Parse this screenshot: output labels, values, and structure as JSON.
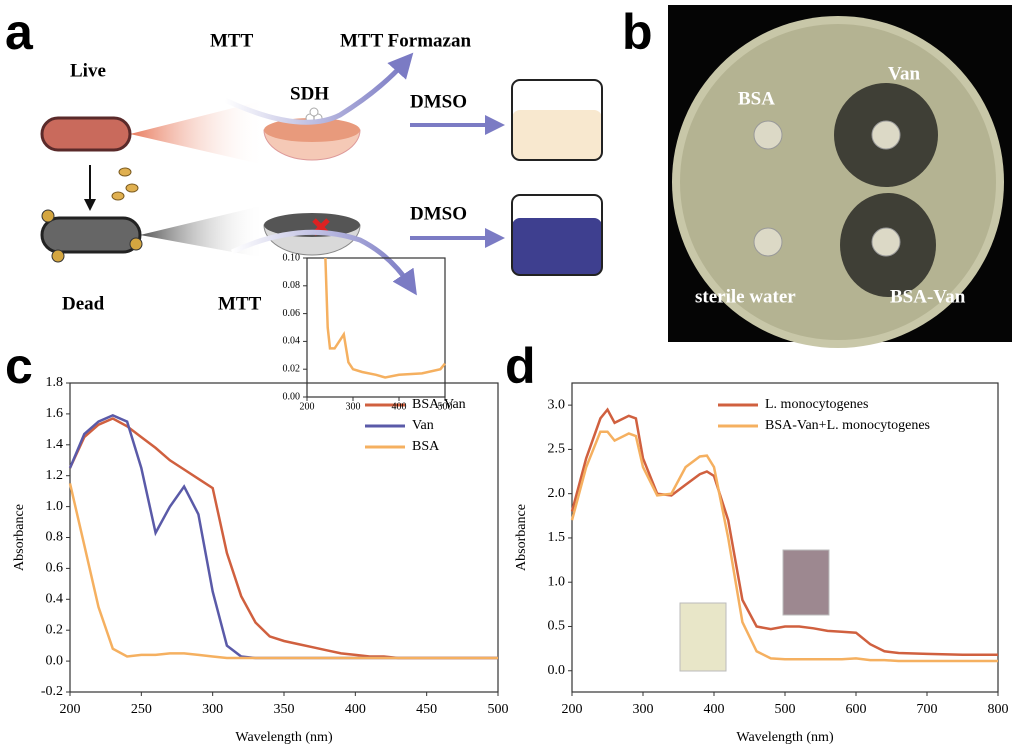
{
  "figure_a": {
    "panel": "a",
    "live": "Live",
    "dead": "Dead",
    "mtt_top": "MTT",
    "formazan": "MTT Formazan",
    "sdh": "SDH",
    "dmso_top": "DMSO",
    "dmso_bottom": "DMSO",
    "mtt_bottom": "MTT"
  },
  "figure_b": {
    "panel": "b",
    "labels": [
      "BSA",
      "Van",
      "sterile water",
      "BSA-Van"
    ]
  },
  "chart_data": [
    {
      "type": "line",
      "panel": "c",
      "x_label": "Wavelength (nm)",
      "y_label": "Absorbance",
      "legend": "upper right",
      "x": [
        200,
        210,
        220,
        230,
        240,
        250,
        260,
        270,
        280,
        290,
        300,
        310,
        320,
        330,
        340,
        350,
        360,
        370,
        380,
        390,
        400,
        410,
        420,
        430,
        440,
        450,
        460,
        470,
        480,
        490,
        500
      ],
      "series": [
        {
          "name": "BSA-Van",
          "color": "#d0603f",
          "values": [
            1.25,
            1.45,
            1.53,
            1.57,
            1.52,
            1.45,
            1.38,
            1.3,
            1.24,
            1.18,
            1.12,
            0.7,
            0.42,
            0.25,
            0.16,
            0.13,
            0.11,
            0.09,
            0.07,
            0.05,
            0.04,
            0.03,
            0.03,
            0.02,
            0.02,
            0.02,
            0.02,
            0.02,
            0.02,
            0.02,
            0.02
          ]
        },
        {
          "name": "Van",
          "color": "#5a5aa8",
          "values": [
            1.25,
            1.47,
            1.55,
            1.59,
            1.55,
            1.25,
            0.83,
            1.0,
            1.13,
            0.95,
            0.45,
            0.1,
            0.03,
            0.02,
            0.02,
            0.02,
            0.02,
            0.02,
            0.02,
            0.02,
            0.02,
            0.02,
            0.02,
            0.02,
            0.02,
            0.02,
            0.02,
            0.02,
            0.02,
            0.02,
            0.02
          ]
        },
        {
          "name": "BSA",
          "color": "#f5b060",
          "values": [
            1.15,
            0.75,
            0.35,
            0.08,
            0.03,
            0.04,
            0.04,
            0.05,
            0.05,
            0.04,
            0.03,
            0.02,
            0.02,
            0.02,
            0.02,
            0.02,
            0.02,
            0.02,
            0.02,
            0.02,
            0.02,
            0.02,
            0.02,
            0.02,
            0.02,
            0.02,
            0.02,
            0.02,
            0.02,
            0.02,
            0.02
          ]
        }
      ],
      "xlim": [
        200,
        500
      ],
      "xticks": [
        200,
        250,
        300,
        350,
        400,
        450,
        500
      ],
      "ylim": [
        -0.2,
        1.8
      ],
      "yticks": [
        -0.2,
        {
          "value": 0,
          "label": "0.0"
        },
        0.2,
        0.4,
        0.6,
        0.8,
        {
          "value": 1,
          "label": "1.0"
        },
        1.2,
        1.4,
        1.6,
        1.8
      ]
    },
    {
      "type": "line",
      "x": [
        240,
        245,
        250,
        260,
        270,
        280,
        290,
        300,
        320,
        350,
        370,
        400,
        450,
        490,
        500
      ],
      "series": [
        {
          "color": "#f5b060",
          "values": [
            0.1,
            0.05,
            0.035,
            0.035,
            0.04,
            0.045,
            0.025,
            0.02,
            0.018,
            0.016,
            0.014,
            0.016,
            0.017,
            0.02,
            0.024
          ]
        }
      ],
      "xlim": [
        200,
        500
      ],
      "xticks": [
        200,
        300,
        400,
        500
      ],
      "ylim": [
        0,
        0.1
      ],
      "yticks": [
        {
          "value": 0,
          "label": "0.00"
        },
        0.02,
        0.04,
        0.06,
        0.08,
        {
          "value": 0.1,
          "label": "0.10"
        }
      ]
    },
    {
      "type": "line",
      "panel": "d",
      "x_label": "Wavelength (nm)",
      "y_label": "Absorbance",
      "legend": "upper center",
      "x": [
        200,
        220,
        240,
        250,
        260,
        280,
        290,
        300,
        320,
        340,
        360,
        380,
        390,
        400,
        420,
        440,
        460,
        480,
        500,
        520,
        540,
        560,
        580,
        600,
        620,
        640,
        660,
        700,
        750,
        800
      ],
      "series": [
        {
          "name": "L. monocytogenes",
          "color": "#d0603f",
          "values": [
            1.8,
            2.4,
            2.85,
            2.95,
            2.8,
            2.88,
            2.85,
            2.4,
            2.0,
            1.98,
            2.1,
            2.22,
            2.25,
            2.2,
            1.7,
            0.8,
            0.5,
            0.47,
            0.5,
            0.5,
            0.48,
            0.45,
            0.44,
            0.43,
            0.3,
            0.22,
            0.2,
            0.19,
            0.18,
            0.18
          ]
        },
        {
          "name": "BSA-Van+L. monocytogenes",
          "color": "#f5b060",
          "values": [
            1.7,
            2.3,
            2.7,
            2.7,
            2.6,
            2.68,
            2.65,
            2.3,
            1.98,
            2.0,
            2.3,
            2.42,
            2.43,
            2.3,
            1.5,
            0.55,
            0.22,
            0.14,
            0.13,
            0.13,
            0.13,
            0.13,
            0.13,
            0.14,
            0.12,
            0.12,
            0.11,
            0.11,
            0.11,
            0.11
          ]
        }
      ],
      "xlim": [
        200,
        800
      ],
      "xticks": [
        200,
        300,
        400,
        500,
        600,
        700,
        800
      ],
      "ylim": [
        -0.24,
        3.25
      ],
      "yticks": [
        {
          "value": 0,
          "label": "0.0"
        },
        0.5,
        {
          "value": 1,
          "label": "1.0"
        },
        1.5,
        {
          "value": 2,
          "label": "2.0"
        },
        2.5,
        {
          "value": 3,
          "label": "3.0"
        }
      ]
    }
  ]
}
